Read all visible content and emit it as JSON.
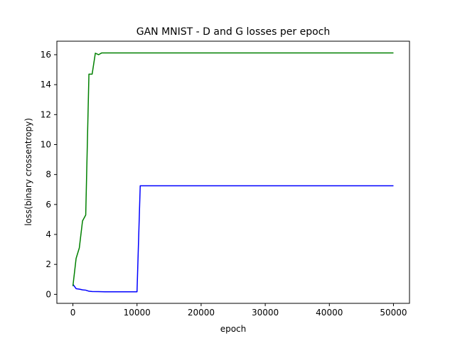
{
  "chart_data": {
    "type": "line",
    "title": "GAN MNIST - D and G losses per epoch",
    "xlabel": "epoch",
    "ylabel": "loss(binary crossentropy)",
    "xlim": [
      -2500,
      52500
    ],
    "ylim": [
      -0.6,
      16.9
    ],
    "xticks": [
      0,
      10000,
      20000,
      30000,
      40000,
      50000
    ],
    "xtick_labels": [
      "0",
      "10000",
      "20000",
      "30000",
      "40000",
      "50000"
    ],
    "yticks": [
      0,
      2,
      4,
      6,
      8,
      10,
      12,
      14,
      16
    ],
    "ytick_labels": [
      "0",
      "2",
      "4",
      "6",
      "8",
      "10",
      "12",
      "14",
      "16"
    ],
    "grid": false,
    "series": [
      {
        "color": "#0000ff",
        "points": [
          [
            0,
            0.68
          ],
          [
            500,
            0.38
          ],
          [
            1000,
            0.35
          ],
          [
            1500,
            0.3
          ],
          [
            2000,
            0.28
          ],
          [
            2500,
            0.21
          ],
          [
            3000,
            0.19
          ],
          [
            4000,
            0.18
          ],
          [
            5000,
            0.17
          ],
          [
            10000,
            0.17
          ],
          [
            10500,
            7.25
          ],
          [
            50000,
            7.25
          ]
        ]
      },
      {
        "color": "#008000",
        "points": [
          [
            0,
            0.55
          ],
          [
            500,
            2.4
          ],
          [
            1000,
            3.1
          ],
          [
            1500,
            4.9
          ],
          [
            2000,
            5.3
          ],
          [
            2500,
            14.7
          ],
          [
            3000,
            14.7
          ],
          [
            3500,
            16.1
          ],
          [
            4000,
            16.0
          ],
          [
            4500,
            16.12
          ],
          [
            50000,
            16.12
          ]
        ]
      }
    ]
  }
}
